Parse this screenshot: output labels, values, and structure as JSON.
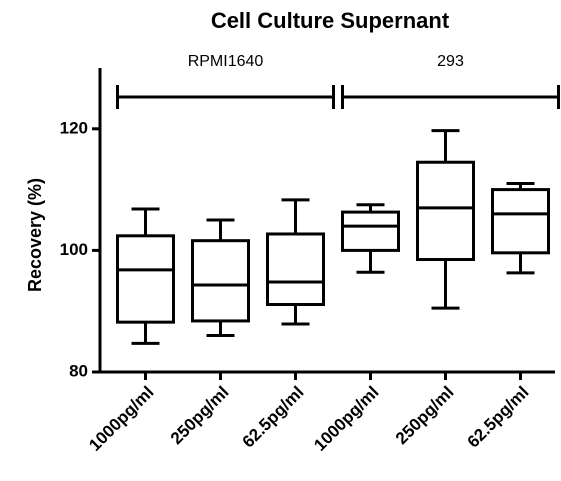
{
  "chart_data": {
    "type": "box",
    "title": "Cell Culture Supernant",
    "y_label": "Recovery (%)",
    "categories": [
      "1000pg/ml",
      "250pg/ml",
      "62.5pg/ml",
      "1000pg/ml",
      "250pg/ml",
      "62.5pg/ml"
    ],
    "boxes": [
      {
        "min": 84.7,
        "q1": 88.2,
        "median": 96.8,
        "q3": 102.4,
        "max": 106.8
      },
      {
        "min": 86,
        "q1": 88.4,
        "median": 94.3,
        "q3": 101.6,
        "max": 105
      },
      {
        "min": 87.9,
        "q1": 91.1,
        "median": 94.8,
        "q3": 102.7,
        "max": 108.3
      },
      {
        "min": 96.4,
        "q1": 100,
        "median": 104,
        "q3": 106.3,
        "max": 107.5
      },
      {
        "min": 90.5,
        "q1": 98.5,
        "median": 107,
        "q3": 114.5,
        "max": 119.7
      },
      {
        "min": 96.3,
        "q1": 99.6,
        "median": 106,
        "q3": 110,
        "max": 111
      }
    ],
    "annotations": [
      "RPMI1640",
      "293"
    ],
    "color": "#000000",
    "ylim": [
      80,
      130
    ],
    "yticks": [
      80,
      100,
      120
    ]
  }
}
